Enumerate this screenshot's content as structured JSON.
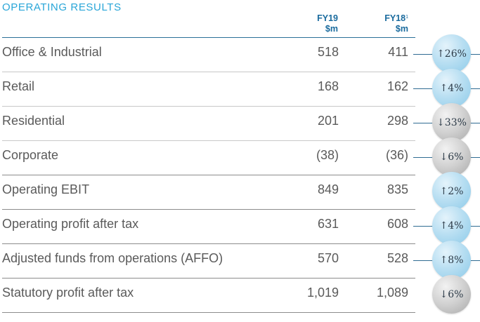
{
  "title": "OPERATING RESULTS",
  "columns": {
    "fy19": {
      "year": "FY19",
      "unit": "$m"
    },
    "fy18": {
      "year": "FY18",
      "sup": "1",
      "unit": "$m"
    }
  },
  "rows": [
    {
      "label": "Office & Industrial",
      "fy19": "518",
      "fy18": "411",
      "change": "↑26%",
      "direction": "up"
    },
    {
      "label": "Retail",
      "fy19": "168",
      "fy18": "162",
      "change": "↑4%",
      "direction": "up"
    },
    {
      "label": "Residential",
      "fy19": "201",
      "fy18": "298",
      "change": "↓33%",
      "direction": "down"
    },
    {
      "label": "Corporate",
      "fy19": "(38)",
      "fy18": "(36)",
      "change": "↓6%",
      "direction": "down"
    },
    {
      "label": "Operating EBIT",
      "fy19": "849",
      "fy18": "835",
      "change": "↑2%",
      "direction": "up"
    },
    {
      "label": "Operating profit after tax",
      "fy19": "631",
      "fy18": "608",
      "change": "↑4%",
      "direction": "up"
    },
    {
      "label": "Adjusted funds from operations (AFFO)",
      "fy19": "570",
      "fy18": "528",
      "change": "↑8%",
      "direction": "up"
    },
    {
      "label": "Statutory profit after tax",
      "fy19": "1,019",
      "fy18": "1,089",
      "change": "↓6%",
      "direction": "down"
    }
  ],
  "colors": {
    "title": "#29a6d8",
    "header": "#1a6b9e",
    "up_bubble": "#b9dff2",
    "down_bubble": "#d0d0d0"
  }
}
